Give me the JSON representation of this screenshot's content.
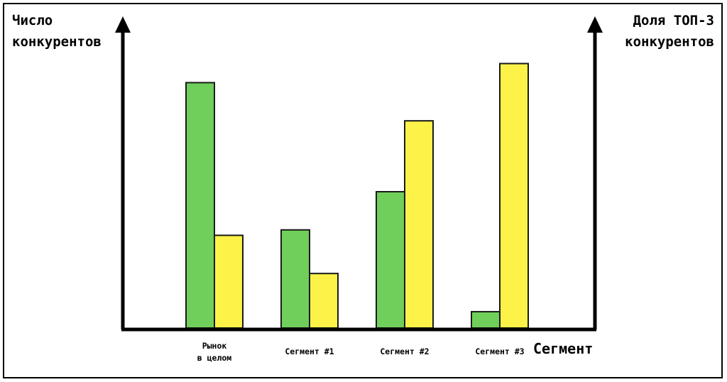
{
  "colors": {
    "competitors": "#6FCF5A",
    "top3_share": "#FDF348",
    "stroke": "#1a1a1a",
    "axis": "#000000"
  },
  "chart_data": {
    "type": "bar",
    "categories": [
      "Рынок\nв целом",
      "Сегмент #1",
      "Сегмент #2",
      "Сегмент #3"
    ],
    "xlabel": "Сегмент",
    "ylabel_left": "Число\nконкурентов",
    "ylabel_right": "Доля ТОП-3\nконкурентов",
    "y_tick_labels": false,
    "series": [
      {
        "axis": "left",
        "color": "#6FCF5A",
        "values": [
          0.9,
          0.36,
          0.5,
          0.06
        ]
      },
      {
        "axis": "right",
        "color": "#FDF348",
        "values": [
          0.34,
          0.2,
          0.76,
          0.97
        ]
      }
    ],
    "ylim": [
      0,
      1
    ],
    "grid": false,
    "legend": "none"
  }
}
